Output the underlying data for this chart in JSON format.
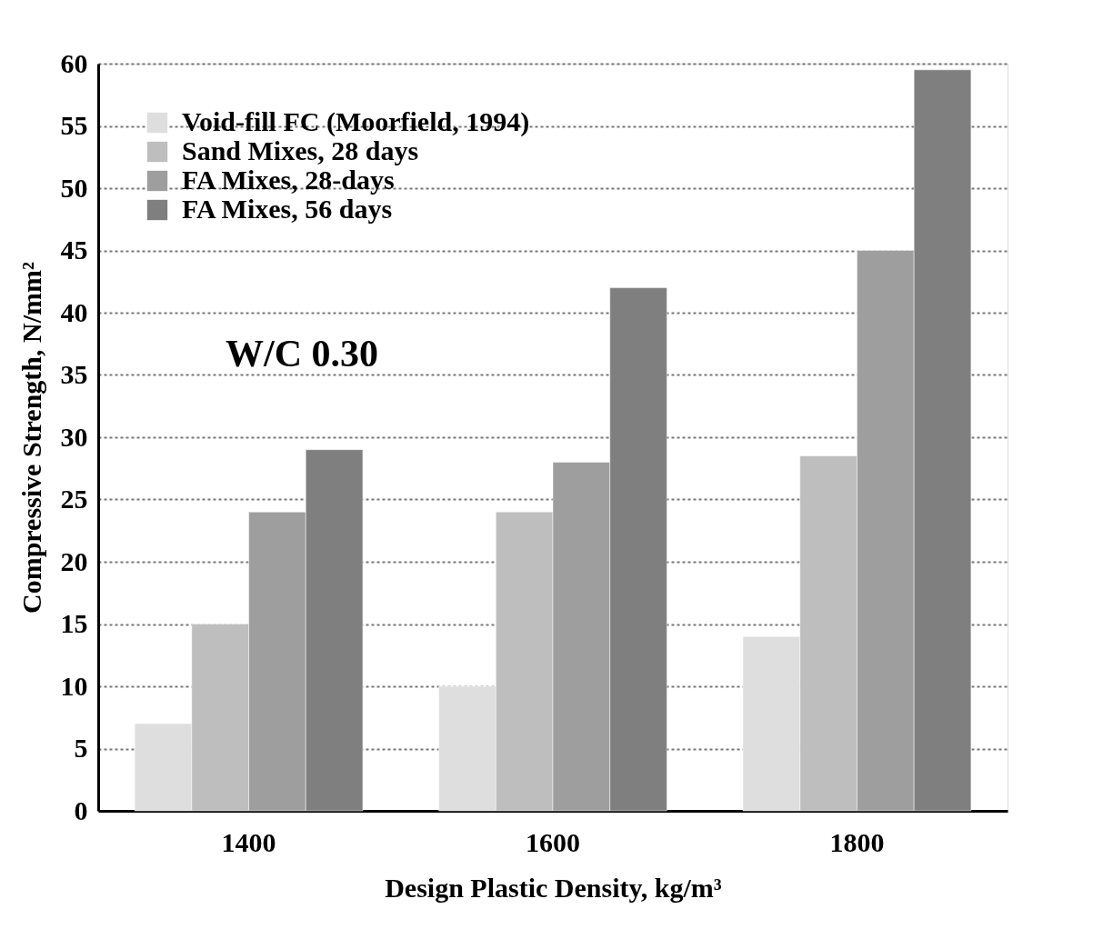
{
  "chart_data": {
    "type": "bar",
    "xlabel": "Design Plastic Density, kg/m³",
    "ylabel": "Compressive Strength, N/mm²",
    "categories": [
      "1400",
      "1600",
      "1800"
    ],
    "series": [
      {
        "name": "Void-fill FC (Moorfield, 1994)",
        "color": "#dedede",
        "values": [
          7,
          10,
          14
        ]
      },
      {
        "name": "Sand Mixes, 28 days",
        "color": "#bebebe",
        "values": [
          15,
          24,
          28.5
        ]
      },
      {
        "name": "FA Mixes, 28-days",
        "color": "#9e9e9e",
        "values": [
          24,
          28,
          45
        ]
      },
      {
        "name": "FA Mixes, 56 days",
        "color": "#7f7f7f",
        "values": [
          29,
          42,
          59.5
        ]
      }
    ],
    "ylim": [
      0,
      60
    ],
    "yticks": [
      0,
      5,
      10,
      15,
      20,
      25,
      30,
      35,
      40,
      45,
      50,
      55,
      60
    ],
    "grid": "y",
    "legend": "top left",
    "annotations": [
      "W/C 0.30"
    ]
  }
}
